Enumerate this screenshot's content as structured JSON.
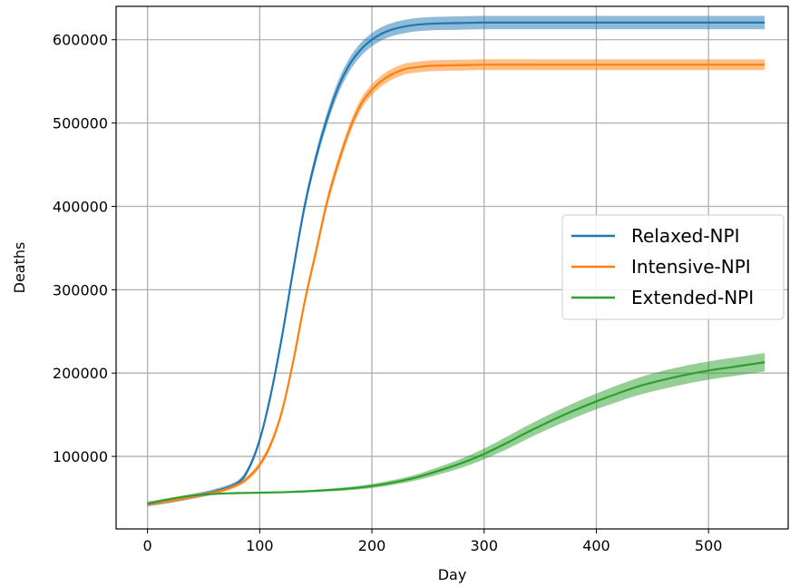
{
  "chart_data": {
    "type": "line",
    "xlabel": "Day",
    "ylabel": "Deaths",
    "xlim": [
      -28,
      571
    ],
    "ylim": [
      13000,
      640000
    ],
    "xticks": [
      0,
      100,
      200,
      300,
      400,
      500
    ],
    "yticks": [
      100000,
      200000,
      300000,
      400000,
      500000,
      600000
    ],
    "grid": true,
    "legend_position": "center-right",
    "series": [
      {
        "name": "Relaxed-NPI",
        "color": "#1f77b4",
        "x": [
          0,
          20,
          40,
          60,
          80,
          90,
          100,
          110,
          120,
          130,
          140,
          150,
          160,
          170,
          180,
          190,
          200,
          210,
          220,
          230,
          240,
          250,
          260,
          280,
          300,
          350,
          400,
          450,
          500,
          550
        ],
        "y": [
          43000,
          47000,
          52000,
          58000,
          68000,
          85000,
          120000,
          175000,
          245000,
          325000,
          400000,
          458000,
          505000,
          543000,
          570000,
          588000,
          600000,
          608000,
          613000,
          616000,
          618000,
          619000,
          619500,
          620000,
          620500,
          620500,
          620500,
          620500,
          620500,
          620500
        ],
        "band": [
          3000,
          3000,
          3000,
          3000,
          3000,
          3500,
          4000,
          5000,
          5500,
          6000,
          6500,
          7000,
          7500,
          8000,
          8000,
          8000,
          8000,
          8000,
          8000,
          8000,
          8000,
          8000,
          8000,
          8000,
          8000,
          8000,
          8000,
          8000,
          8000,
          8000
        ]
      },
      {
        "name": "Intensive-NPI",
        "color": "#ff7f0e",
        "x": [
          0,
          20,
          40,
          60,
          80,
          90,
          100,
          110,
          120,
          130,
          140,
          150,
          160,
          170,
          180,
          190,
          200,
          210,
          220,
          230,
          240,
          250,
          260,
          280,
          300,
          350,
          400,
          450,
          500,
          550
        ],
        "y": [
          43000,
          47000,
          52000,
          57000,
          66000,
          75000,
          90000,
          115000,
          155000,
          215000,
          285000,
          345000,
          405000,
          452000,
          492000,
          522000,
          540000,
          552000,
          560000,
          565000,
          567000,
          568500,
          569000,
          569500,
          570000,
          570000,
          570000,
          570000,
          570000,
          570000
        ],
        "band": [
          2500,
          2500,
          2500,
          2500,
          2500,
          3000,
          3500,
          4000,
          4500,
          5000,
          5500,
          6000,
          6500,
          6500,
          6500,
          6500,
          6500,
          6500,
          6500,
          6500,
          6500,
          6500,
          6500,
          6500,
          6500,
          6500,
          6500,
          6500,
          6500,
          6500
        ]
      },
      {
        "name": "Extended-NPI",
        "color": "#2ca02c",
        "x": [
          0,
          20,
          40,
          60,
          80,
          100,
          120,
          140,
          160,
          180,
          200,
          220,
          240,
          260,
          280,
          300,
          320,
          340,
          360,
          380,
          400,
          420,
          440,
          460,
          480,
          500,
          520,
          540,
          550
        ],
        "y": [
          43000,
          49000,
          53000,
          55000,
          56000,
          56500,
          57000,
          58000,
          59500,
          61500,
          64500,
          69000,
          75000,
          83000,
          92000,
          103000,
          116000,
          130000,
          143000,
          155000,
          166000,
          176000,
          185000,
          192000,
          198000,
          203000,
          207000,
          211000,
          213000
        ],
        "band": [
          500,
          500,
          600,
          700,
          800,
          900,
          1000,
          1200,
          1500,
          2000,
          2500,
          3000,
          3500,
          4500,
          5500,
          6500,
          7500,
          8000,
          8500,
          9000,
          9500,
          10000,
          10500,
          11000,
          11000,
          11000,
          11000,
          11000,
          11000
        ]
      }
    ]
  }
}
